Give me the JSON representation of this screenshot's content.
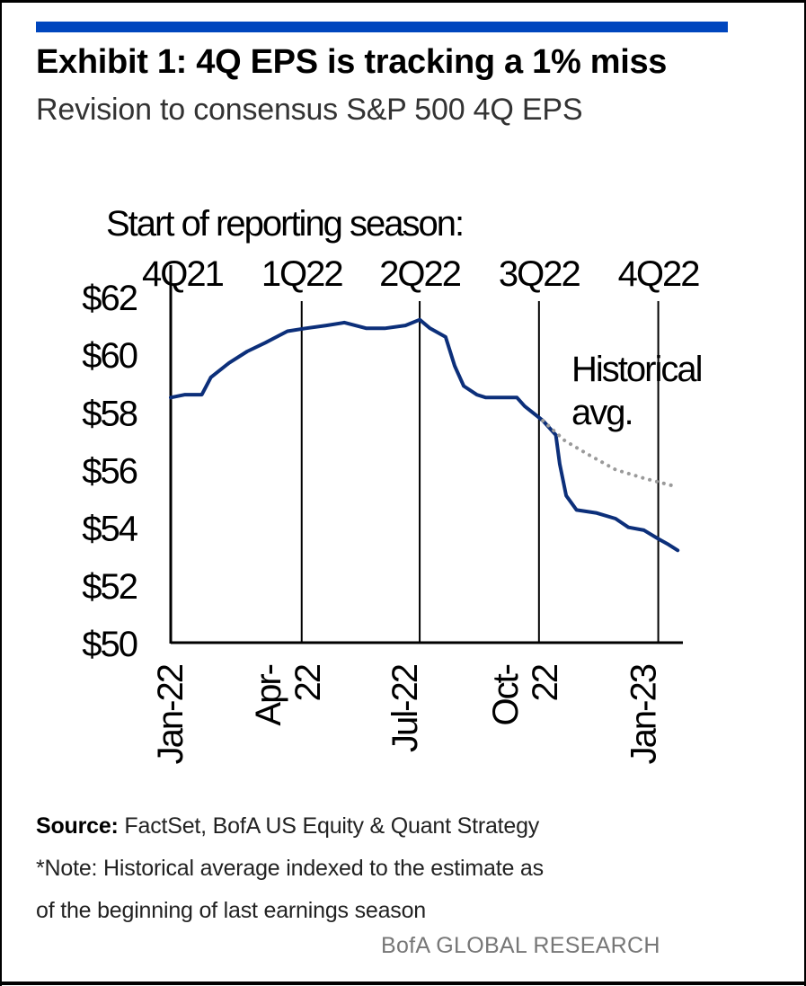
{
  "header": {
    "title": "Exhibit 1: 4Q EPS is tracking a 1% miss",
    "subtitle": "Revision to consensus S&P 500 4Q EPS"
  },
  "footer": {
    "source_label": "Source:",
    "source_text": " FactSet, BofA US Equity & Quant Strategy",
    "note_line1": "*Note: Historical average indexed to the estimate as",
    "note_line2": "of the beginning  of last earnings season",
    "brand": "BofA GLOBAL RESEARCH"
  },
  "colors": {
    "accent": "#0046be",
    "series_main": "#0c2f7a",
    "series_hist": "#9a9a9a"
  },
  "chart_data": {
    "type": "line",
    "title": "Revision to consensus S&P 500 4Q EPS",
    "ylim": [
      50,
      62
    ],
    "yticks": [
      50,
      52,
      54,
      56,
      58,
      60,
      62
    ],
    "ytick_labels": [
      "$50",
      "$52",
      "$54",
      "$56",
      "$58",
      "$60",
      "$62"
    ],
    "xlim": [
      "2022-01-01",
      "2023-01-31"
    ],
    "xticks": [
      {
        "date": "2022-01-01",
        "lines": [
          "Jan-22"
        ]
      },
      {
        "date": "2022-04-01",
        "lines": [
          "Apr-",
          "22"
        ]
      },
      {
        "date": "2022-07-01",
        "lines": [
          "Jul-22"
        ]
      },
      {
        "date": "2022-10-01",
        "lines": [
          "Oct-",
          "22"
        ]
      },
      {
        "date": "2023-01-01",
        "lines": [
          "Jan-23"
        ]
      }
    ],
    "reporting_season_label": "Start of reporting  season:",
    "reporting_seasons": [
      {
        "label": "4Q21",
        "date": "2022-01-10",
        "show_line": false
      },
      {
        "label": "1Q22",
        "date": "2022-04-12",
        "show_line": true
      },
      {
        "label": "2Q22",
        "date": "2022-07-12",
        "show_line": true
      },
      {
        "label": "3Q22",
        "date": "2022-10-12",
        "show_line": true
      },
      {
        "label": "4Q22",
        "date": "2023-01-12",
        "show_line": true
      }
    ],
    "series": [
      {
        "style": "solid",
        "points": [
          [
            "2022-01-01",
            58.5
          ],
          [
            "2022-01-12",
            58.6
          ],
          [
            "2022-01-25",
            58.6
          ],
          [
            "2022-02-01",
            59.2
          ],
          [
            "2022-02-15",
            59.7
          ],
          [
            "2022-03-01",
            60.1
          ],
          [
            "2022-03-15",
            60.4
          ],
          [
            "2022-04-01",
            60.8
          ],
          [
            "2022-04-15",
            60.9
          ],
          [
            "2022-05-01",
            61.0
          ],
          [
            "2022-05-15",
            61.1
          ],
          [
            "2022-06-01",
            60.9
          ],
          [
            "2022-06-15",
            60.9
          ],
          [
            "2022-07-01",
            61.0
          ],
          [
            "2022-07-12",
            61.2
          ],
          [
            "2022-07-20",
            60.9
          ],
          [
            "2022-08-01",
            60.6
          ],
          [
            "2022-08-08",
            59.6
          ],
          [
            "2022-08-15",
            58.9
          ],
          [
            "2022-08-25",
            58.6
          ],
          [
            "2022-09-01",
            58.5
          ],
          [
            "2022-09-25",
            58.5
          ],
          [
            "2022-10-01",
            58.2
          ],
          [
            "2022-10-15",
            57.7
          ],
          [
            "2022-10-25",
            57.2
          ],
          [
            "2022-10-28",
            56.2
          ],
          [
            "2022-11-02",
            55.1
          ],
          [
            "2022-11-10",
            54.6
          ],
          [
            "2022-11-25",
            54.5
          ],
          [
            "2022-12-10",
            54.3
          ],
          [
            "2022-12-20",
            54.0
          ],
          [
            "2023-01-01",
            53.9
          ],
          [
            "2023-01-12",
            53.6
          ],
          [
            "2023-01-20",
            53.4
          ],
          [
            "2023-01-27",
            53.2
          ]
        ]
      },
      {
        "name": "Historical avg.",
        "style": "dotted",
        "points": [
          [
            "2022-10-15",
            57.7
          ],
          [
            "2022-11-01",
            57.0
          ],
          [
            "2022-11-20",
            56.5
          ],
          [
            "2022-12-10",
            56.0
          ],
          [
            "2023-01-01",
            55.7
          ],
          [
            "2023-01-27",
            55.4
          ]
        ]
      }
    ],
    "annotations": [
      {
        "lines": [
          "Historical",
          "avg."
        ]
      }
    ],
    "grid": false
  }
}
